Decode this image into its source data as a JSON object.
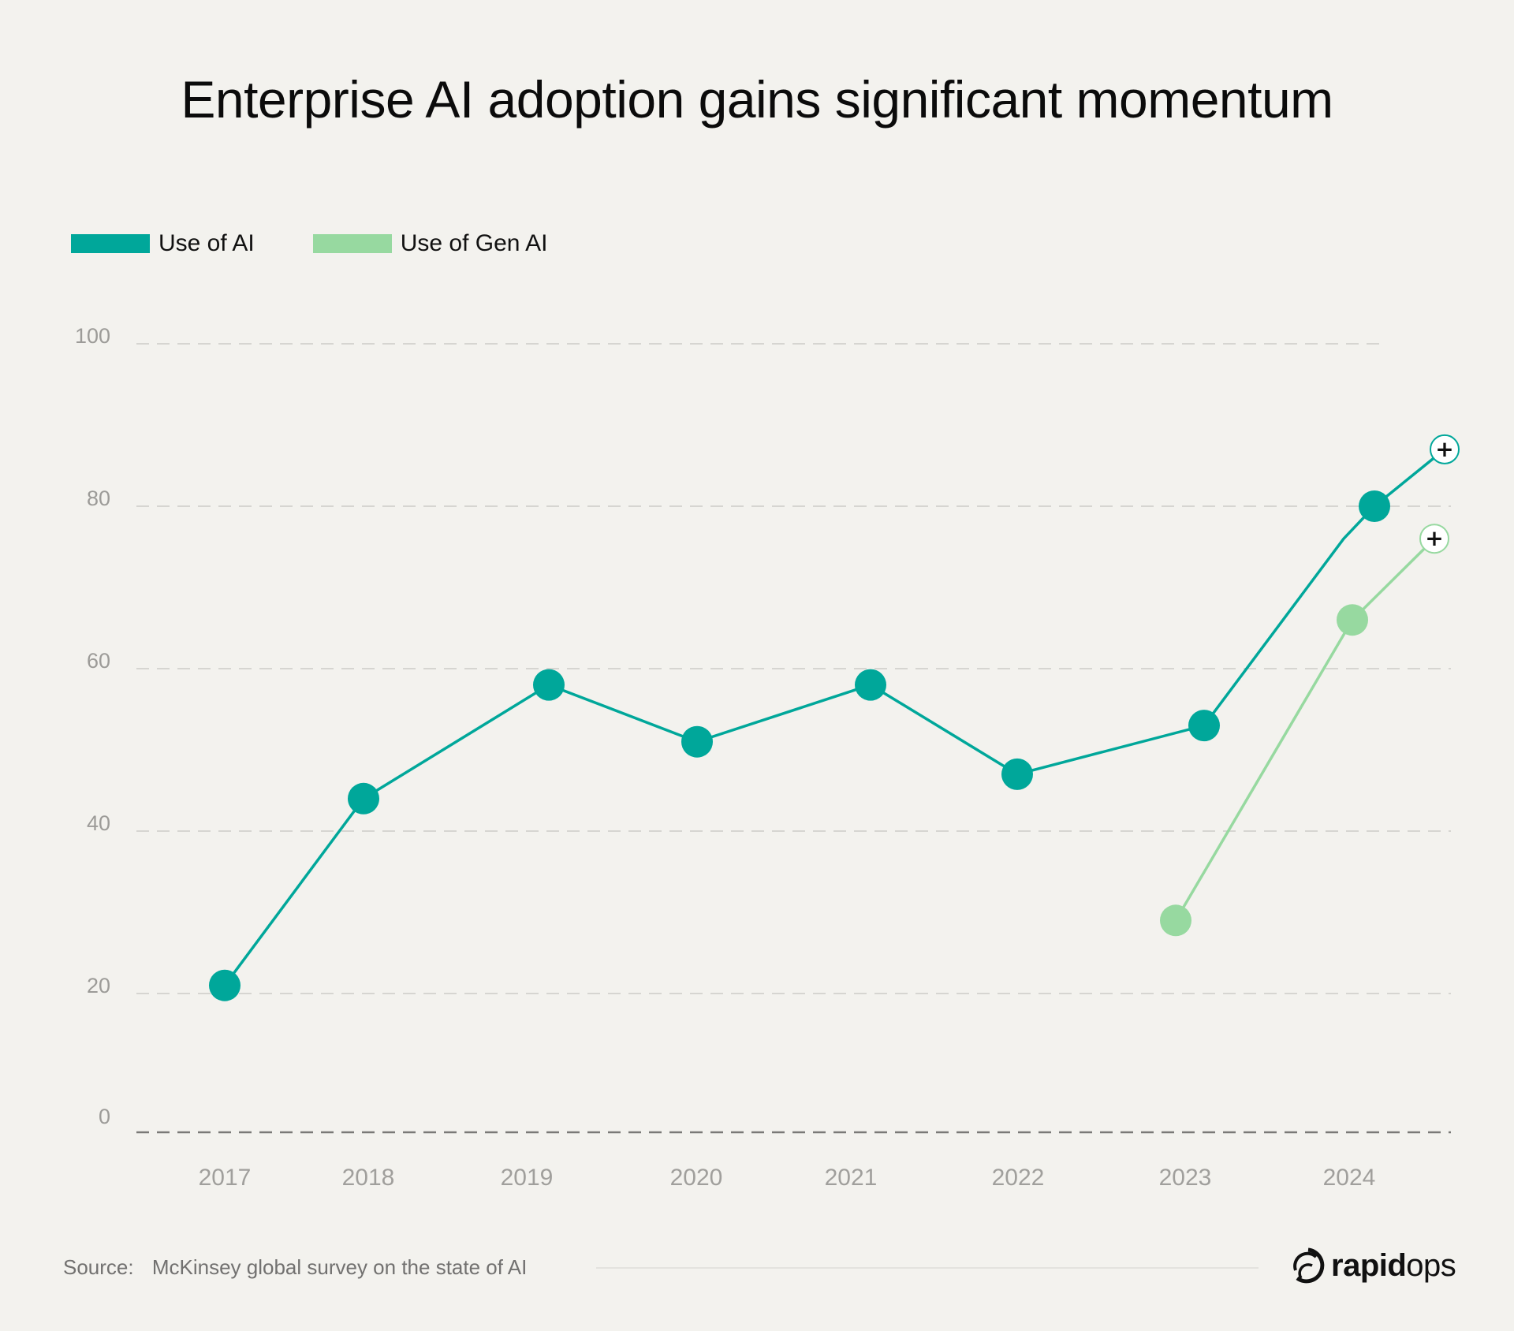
{
  "title": "Enterprise AI adoption gains significant momentum",
  "colors": {
    "use_of_ai": "#00a79a",
    "use_of_gen_ai": "#97d9a0",
    "grid": "#d6d5d1",
    "baseline": "#7a7977",
    "marker_fill": "#ffffff",
    "background": "#f3f2ee"
  },
  "legend": [
    {
      "label": "Use of AI",
      "color": "#00a79a"
    },
    {
      "label": "Use of Gen AI",
      "color": "#97d9a0"
    }
  ],
  "footer": {
    "source_label": "Source:",
    "source_text": "McKinsey global survey on the state of AI",
    "logo_bold": "rapid",
    "logo_light": "ops"
  },
  "chart_data": {
    "type": "line",
    "title": "Enterprise AI adoption gains significant momentum",
    "xlabel": "",
    "ylabel": "",
    "categories": [
      "2017",
      "2018",
      "2019",
      "2020",
      "2021",
      "2022",
      "2023",
      "2024"
    ],
    "yticks": [
      0,
      20,
      40,
      60,
      80,
      100
    ],
    "ylim": [
      0,
      100
    ],
    "grid": true,
    "legend_position": "top-left",
    "series": [
      {
        "name": "Use of AI",
        "values": [
          21,
          44,
          58,
          51,
          58,
          47,
          53,
          80
        ],
        "extension": {
          "label": "+",
          "value": 87,
          "note": "line continues beyond 2024 with a plus marker"
        }
      },
      {
        "name": "Use of Gen AI",
        "values": [
          null,
          null,
          null,
          null,
          null,
          null,
          29,
          66
        ],
        "extension": {
          "label": "+",
          "value": 76,
          "note": "line continues beyond 2024 with a plus marker"
        }
      }
    ]
  }
}
